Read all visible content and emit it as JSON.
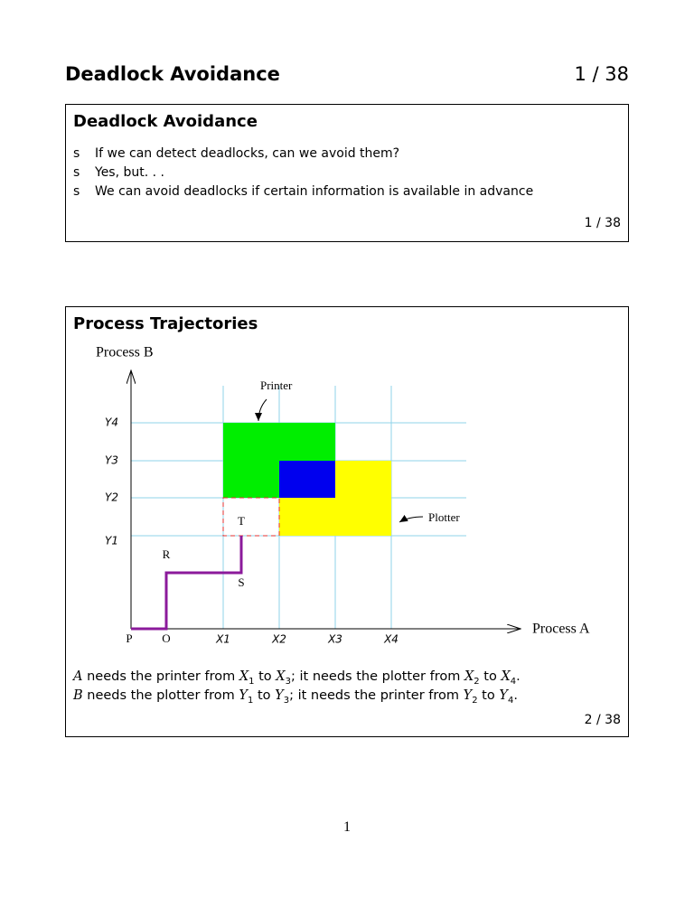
{
  "header": {
    "title": "Deadlock Avoidance",
    "page": "1 / 38"
  },
  "slides": [
    {
      "title": "Deadlock Avoidance",
      "bullets": [
        {
          "marker": "s",
          "text": "If we can detect deadlocks, can we avoid them?"
        },
        {
          "marker": "s",
          "text": "Yes, but. . ."
        },
        {
          "marker": "s",
          "text": "We can avoid deadlocks if certain information is available in advance"
        }
      ],
      "page": "1 / 38"
    },
    {
      "title": "Process Trajectories",
      "diagram": {
        "y_axis_label": "Process B",
        "x_axis_label": "Process A",
        "printer_label": "Printer",
        "plotter_label": "Plotter",
        "y_labels": [
          "Y4",
          "Y3",
          "Y2",
          "Y1"
        ],
        "x_labels": [
          "P",
          "O",
          "X1",
          "X2",
          "X3",
          "X4"
        ],
        "point_labels": [
          "R",
          "S",
          "T"
        ]
      },
      "caption": [
        [
          "A",
          " needs the printer from ",
          "X",
          "1",
          " to ",
          "X",
          "3",
          "; it needs the plotter from ",
          "X",
          "2",
          " to ",
          "X",
          "4",
          "."
        ],
        [
          "B",
          " needs the plotter from ",
          "Y",
          "1",
          " to ",
          "Y",
          "3",
          "; it needs the printer from ",
          "Y",
          "2",
          " to ",
          "Y",
          "4",
          "."
        ]
      ],
      "page": "2 / 38"
    }
  ],
  "footer": {
    "page_number": "1"
  }
}
